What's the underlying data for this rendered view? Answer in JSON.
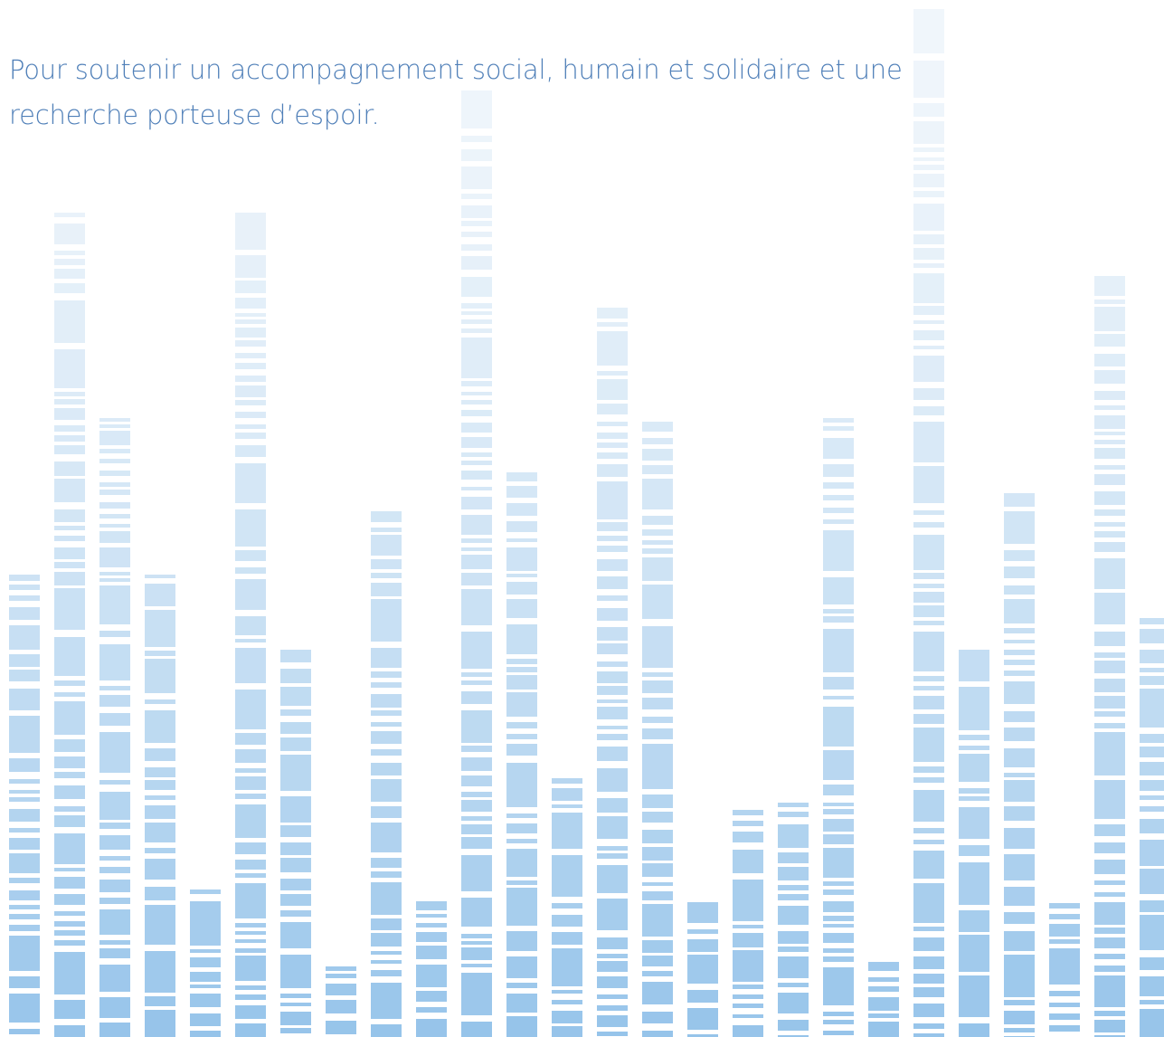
{
  "text": "Pour soutenir un accompagnement social, humain et solidaire et une recherche porteuse d’espoir."
}
